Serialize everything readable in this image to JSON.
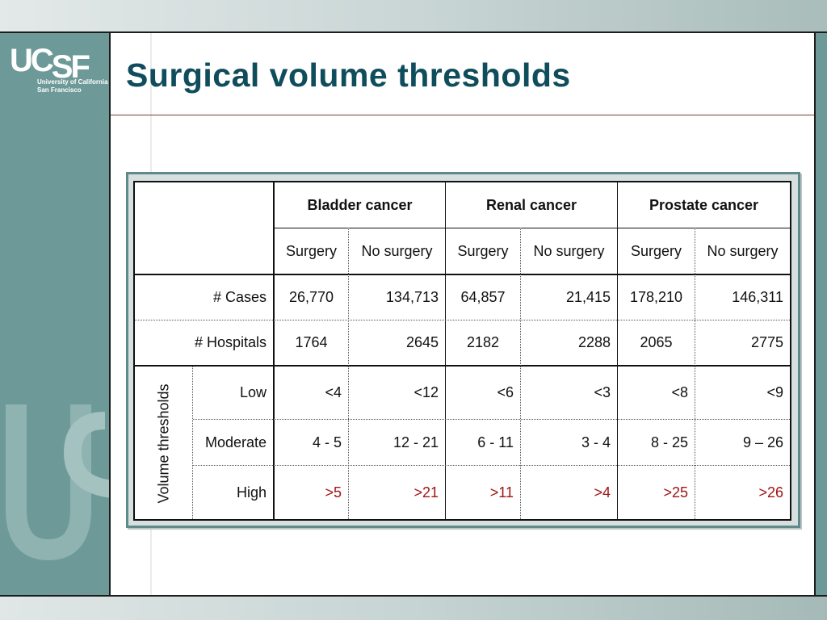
{
  "slide": {
    "title": "Surgical volume thresholds",
    "logo": {
      "mark": "UCSF",
      "sub_line1": "University of California",
      "sub_line2": "San Francisco"
    }
  },
  "table": {
    "groups": [
      "Bladder cancer",
      "Renal cancer",
      "Prostate cancer"
    ],
    "subheaders": [
      "Surgery",
      "No surgery",
      "Surgery",
      "No surgery",
      "Surgery",
      "No surgery"
    ],
    "rows": {
      "cases": {
        "label": "# Cases",
        "values": [
          "26,770",
          "134,713",
          "64,857",
          "21,415",
          "178,210",
          "146,311"
        ]
      },
      "hospitals": {
        "label": "# Hospitals",
        "values": [
          "1764",
          "2645",
          "2182",
          "2288",
          "2065",
          "2775"
        ]
      }
    },
    "thresholds_label": "Volume thresholds",
    "thresholds": {
      "low": {
        "label": "Low",
        "values": [
          "<4",
          "<12",
          "<6",
          "<3",
          "<8",
          "<9"
        ]
      },
      "moderate": {
        "label": "Moderate",
        "values": [
          "4 - 5",
          "12 - 21",
          "6 - 11",
          "3 - 4",
          "8 - 25",
          "9 – 26"
        ]
      },
      "high": {
        "label": "High",
        "values": [
          ">5",
          ">21",
          ">11",
          ">4",
          ">25",
          ">26"
        ]
      }
    }
  },
  "colors": {
    "title": "#0f4c5c",
    "sidebar": "#6d9a98",
    "high_values": "#a11414"
  }
}
